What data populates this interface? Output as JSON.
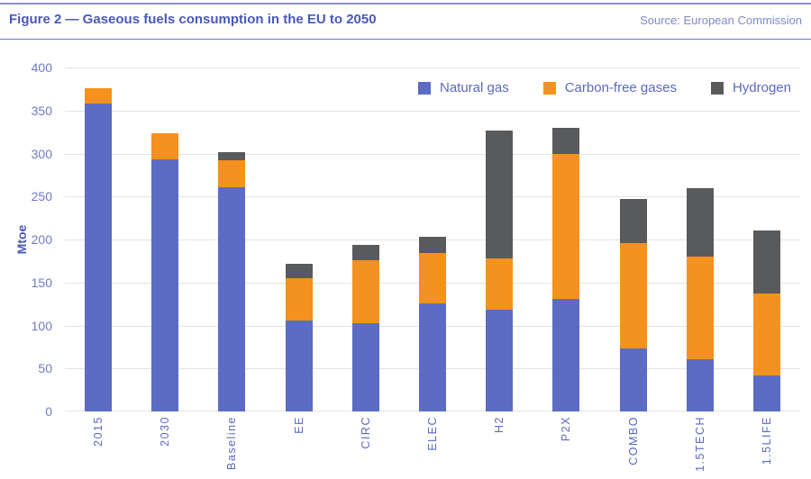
{
  "header": {
    "title": "Figure 2 — Gaseous fuels consumption in the EU to 2050",
    "source": "Source: European Commission"
  },
  "colors": {
    "natural_gas": "#5C6BC4",
    "carbon_free_gases": "#F5911E",
    "hydrogen": "#595A5C",
    "accent_text": "#5b69c0",
    "gridline": "#e2e2e6"
  },
  "chart_data": {
    "type": "bar",
    "stacked": true,
    "title": "Figure 2 — Gaseous fuels consumption in the EU to 2050",
    "categories": [
      "2015",
      "2030",
      "Baseline",
      "EE",
      "CIRC",
      "ELEC",
      "H2",
      "P2X",
      "COMBO",
      "1.5TECH",
      "1.5LIFE"
    ],
    "series": [
      {
        "name": "Natural gas",
        "color": "#5C6BC4",
        "values": [
          358,
          293,
          261,
          106,
          103,
          126,
          118,
          131,
          73,
          61,
          42
        ]
      },
      {
        "name": "Carbon-free gases",
        "color": "#F5911E",
        "values": [
          18,
          31,
          31,
          49,
          73,
          58,
          60,
          169,
          123,
          119,
          95
        ]
      },
      {
        "name": "Hydrogen",
        "color": "#595A5C",
        "values": [
          0,
          0,
          10,
          17,
          18,
          19,
          149,
          30,
          51,
          80,
          73
        ]
      }
    ],
    "totals": [
      376,
      324,
      302,
      172,
      194,
      203,
      327,
      330,
      247,
      260,
      210
    ],
    "xlabel": "",
    "ylabel": "Mtoe",
    "ylim": [
      0,
      400
    ],
    "yticks": [
      0,
      50,
      100,
      150,
      200,
      250,
      300,
      350,
      400
    ],
    "grid": true,
    "legend_position": "top-right"
  }
}
